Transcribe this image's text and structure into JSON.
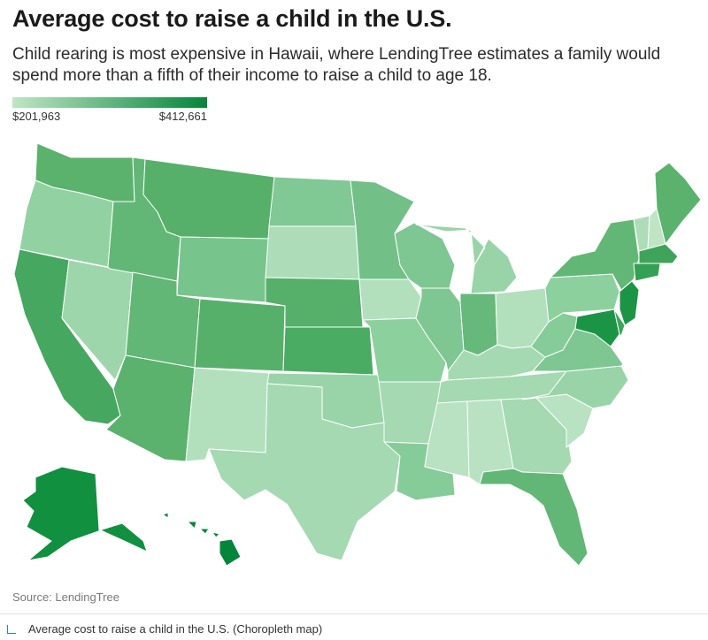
{
  "title": "Average cost to raise a child in the U.S.",
  "subtitle": "Child rearing is most expensive in Hawaii, where LendingTree estimates a family would spend more than a fifth of their income to raise a child to age 18.",
  "legend": {
    "min_label": "$201,963",
    "max_label": "$412,661",
    "min_value": 201963,
    "max_value": 412661,
    "color_low": "#bfe5c5",
    "color_high": "#05853a"
  },
  "source": "Source: LendingTree",
  "caption": "Average cost to raise a child in the U.S. (Choropleth map)",
  "states": [
    {
      "name": "Washington",
      "shade": "#5ab26d"
    },
    {
      "name": "Oregon",
      "shade": "#92d2a2"
    },
    {
      "name": "California",
      "shade": "#46a860"
    },
    {
      "name": "Nevada",
      "shade": "#9ed6ac"
    },
    {
      "name": "Idaho",
      "shade": "#62b776"
    },
    {
      "name": "Montana",
      "shade": "#56b06a"
    },
    {
      "name": "Wyoming",
      "shade": "#78c48d"
    },
    {
      "name": "Utah",
      "shade": "#62b776"
    },
    {
      "name": "Arizona",
      "shade": "#5ab26d"
    },
    {
      "name": "Colorado",
      "shade": "#56b06a"
    },
    {
      "name": "New Mexico",
      "shade": "#b2e0bd"
    },
    {
      "name": "North Dakota",
      "shade": "#80c894"
    },
    {
      "name": "South Dakota",
      "shade": "#acdcb8"
    },
    {
      "name": "Nebraska",
      "shade": "#56b06a"
    },
    {
      "name": "Kansas",
      "shade": "#4aab63"
    },
    {
      "name": "Oklahoma",
      "shade": "#98d4a7"
    },
    {
      "name": "Texas",
      "shade": "#a4d9b1"
    },
    {
      "name": "Minnesota",
      "shade": "#72c088"
    },
    {
      "name": "Iowa",
      "shade": "#b2e0bd"
    },
    {
      "name": "Missouri",
      "shade": "#8cd09e"
    },
    {
      "name": "Arkansas",
      "shade": "#a4d9b1"
    },
    {
      "name": "Louisiana",
      "shade": "#86cc98"
    },
    {
      "name": "Wisconsin",
      "shade": "#7ec692"
    },
    {
      "name": "Illinois",
      "shade": "#7ec692"
    },
    {
      "name": "Michigan",
      "shade": "#98d4a7"
    },
    {
      "name": "Indiana",
      "shade": "#66b97a"
    },
    {
      "name": "Ohio",
      "shade": "#b2e0bd"
    },
    {
      "name": "Kentucky",
      "shade": "#a4d9b1"
    },
    {
      "name": "Tennessee",
      "shade": "#a4d9b1"
    },
    {
      "name": "Mississippi",
      "shade": "#b8e2c1"
    },
    {
      "name": "Alabama",
      "shade": "#b8e2c1"
    },
    {
      "name": "Georgia",
      "shade": "#a4d9b1"
    },
    {
      "name": "Florida",
      "shade": "#62b776"
    },
    {
      "name": "South Carolina",
      "shade": "#b8e2c1"
    },
    {
      "name": "North Carolina",
      "shade": "#98d4a7"
    },
    {
      "name": "Virginia",
      "shade": "#7ec692"
    },
    {
      "name": "West Virginia",
      "shade": "#86cc98"
    },
    {
      "name": "Pennsylvania",
      "shade": "#8cd09e"
    },
    {
      "name": "New York",
      "shade": "#62b776"
    },
    {
      "name": "Vermont",
      "shade": "#acdcb8"
    },
    {
      "name": "New Hampshire",
      "shade": "#bfe5c5"
    },
    {
      "name": "Maine",
      "shade": "#5ab26d"
    },
    {
      "name": "Massachusetts",
      "shade": "#3ea45a"
    },
    {
      "name": "Connecticut",
      "shade": "#34a054"
    },
    {
      "name": "New Jersey",
      "shade": "#1c9446"
    },
    {
      "name": "Maryland",
      "shade": "#1c9446"
    },
    {
      "name": "Delaware",
      "shade": "#3ea45a"
    },
    {
      "name": "Alaska",
      "shade": "#11903f"
    },
    {
      "name": "Hawaii",
      "shade": "#05853a"
    }
  ]
}
